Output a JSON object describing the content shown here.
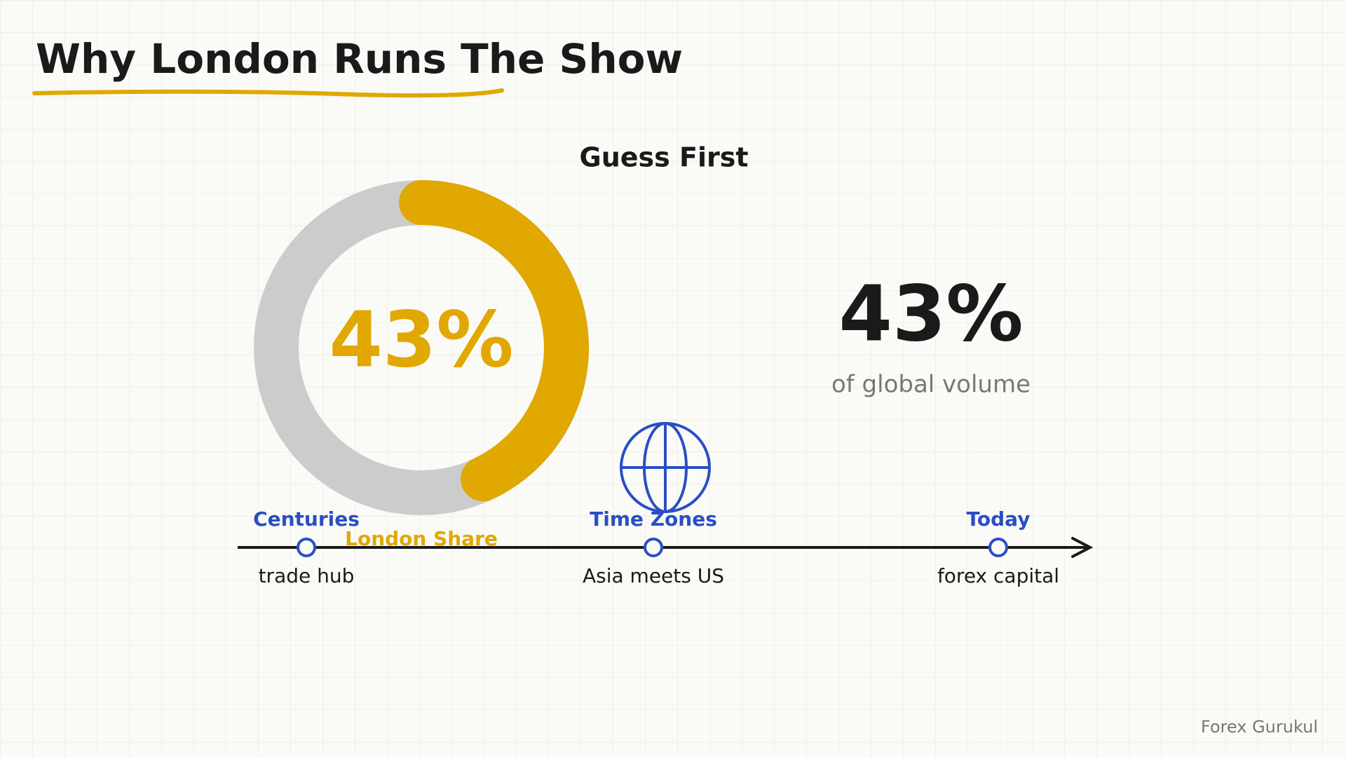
{
  "header": {
    "title": "Why London Runs The Show",
    "subtitle": "Guess First"
  },
  "chart_data": {
    "type": "donut",
    "categories": [
      "London Share"
    ],
    "values": [
      43
    ],
    "value_labels": [
      "43%"
    ],
    "color": "#e0a800",
    "track_color": "#cccccc"
  },
  "stat": {
    "value": "43%",
    "caption": "of global volume"
  },
  "timeline": {
    "items": [
      {
        "label": "Centuries",
        "caption": "trade hub"
      },
      {
        "label": "Time Zones",
        "caption": "Asia meets US"
      },
      {
        "label": "Today",
        "caption": "forex capital"
      }
    ]
  },
  "footer": {
    "watermark": "Forex Gurukul"
  }
}
